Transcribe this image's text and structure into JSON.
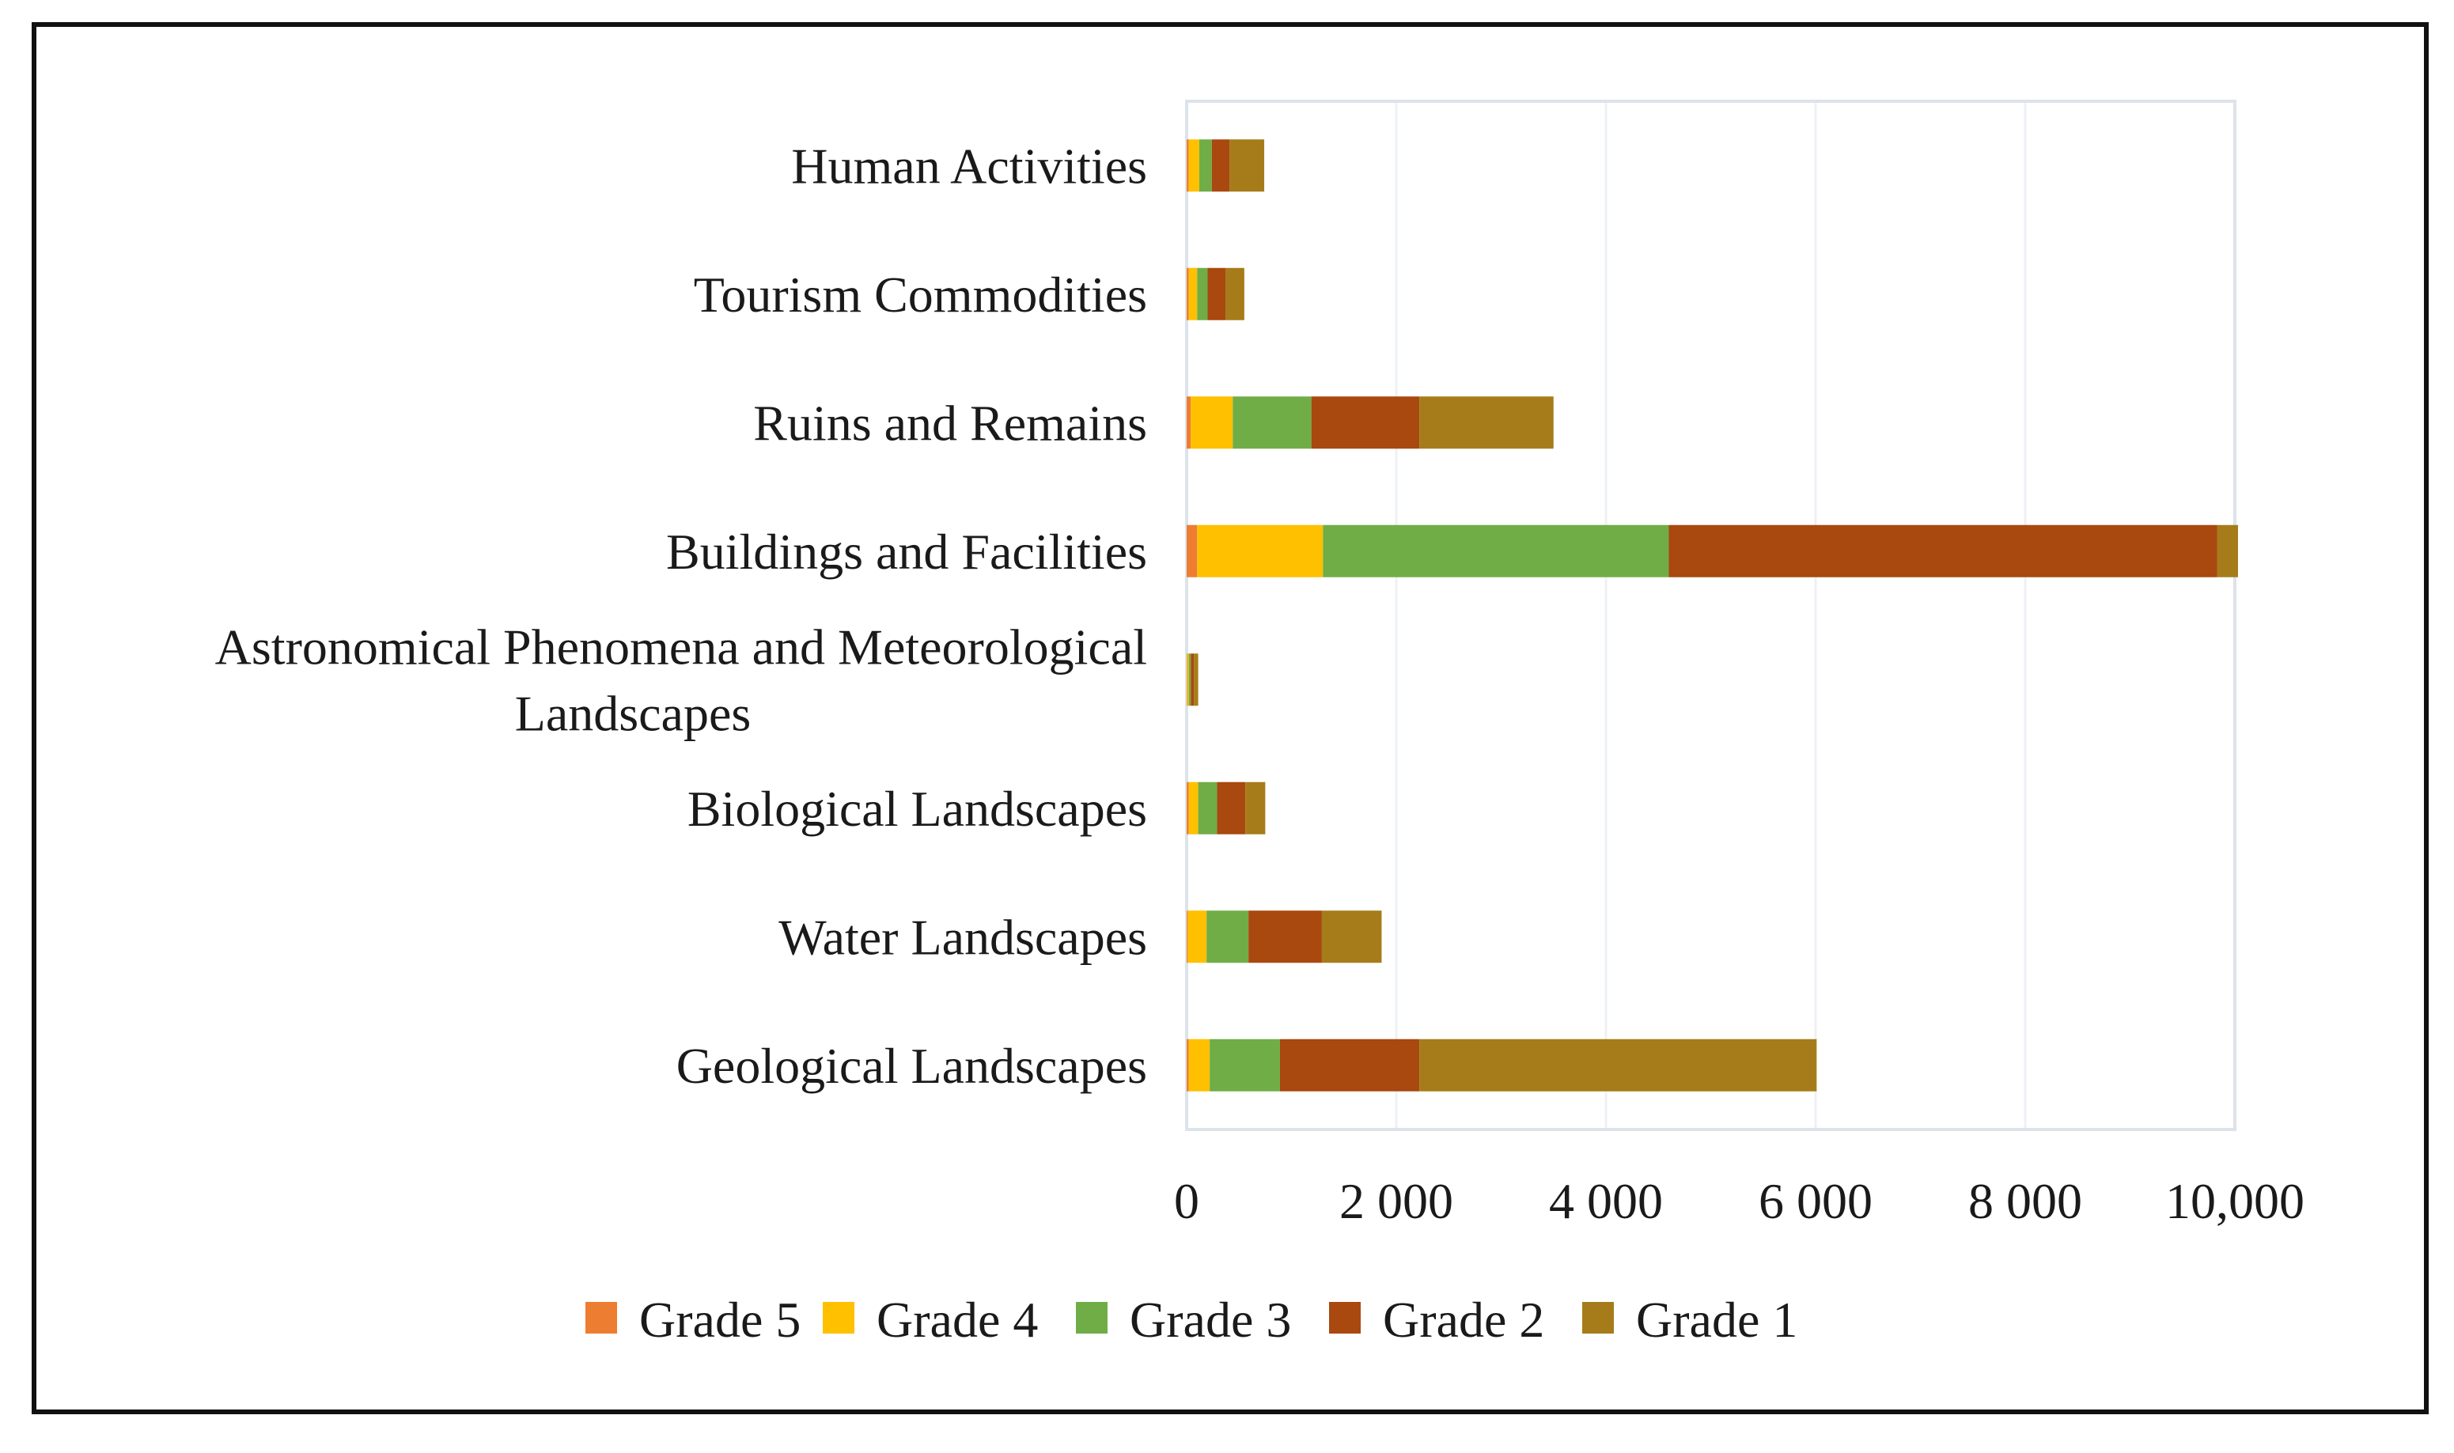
{
  "chart_data": {
    "type": "bar",
    "orientation": "horizontal",
    "stacked": true,
    "title": "",
    "xlabel": "",
    "ylabel": "",
    "xlim": [
      0,
      10000
    ],
    "grid": true,
    "legend_position": "bottom",
    "categories": [
      [
        "Human Activities"
      ],
      [
        "Tourism Commodities"
      ],
      [
        "Ruins and Remains"
      ],
      [
        "Buildings and Facilities"
      ],
      [
        "Astronomical Phenomena and Meteorological",
        "Landscapes"
      ],
      [
        "Biological Landscapes"
      ],
      [
        "Water Landscapes"
      ],
      [
        "Geological Landscapes"
      ]
    ],
    "series": [
      {
        "name": "Grade 5",
        "color": "#ed7d31",
        "values": [
          20,
          20,
          40,
          100,
          5,
          20,
          10,
          20
        ]
      },
      {
        "name": "Grade 4",
        "color": "#ffc000",
        "values": [
          100,
          80,
          400,
          1200,
          15,
          90,
          180,
          200
        ]
      },
      {
        "name": "Grade 3",
        "color": "#70ad47",
        "values": [
          120,
          100,
          750,
          3300,
          20,
          180,
          400,
          670
        ]
      },
      {
        "name": "Grade 2",
        "color": "#a9480f",
        "values": [
          170,
          170,
          1030,
          5230,
          30,
          270,
          700,
          1330
        ]
      },
      {
        "name": "Grade 1",
        "color": "#a67c1a",
        "values": [
          330,
          180,
          1280,
          200,
          40,
          190,
          570,
          3790
        ]
      }
    ],
    "tick_values": [
      0,
      2000,
      4000,
      6000,
      8000,
      10000
    ],
    "tick_labels": [
      "0",
      "2 000",
      "4 000",
      "6 000",
      "8 000",
      "10,000"
    ]
  }
}
